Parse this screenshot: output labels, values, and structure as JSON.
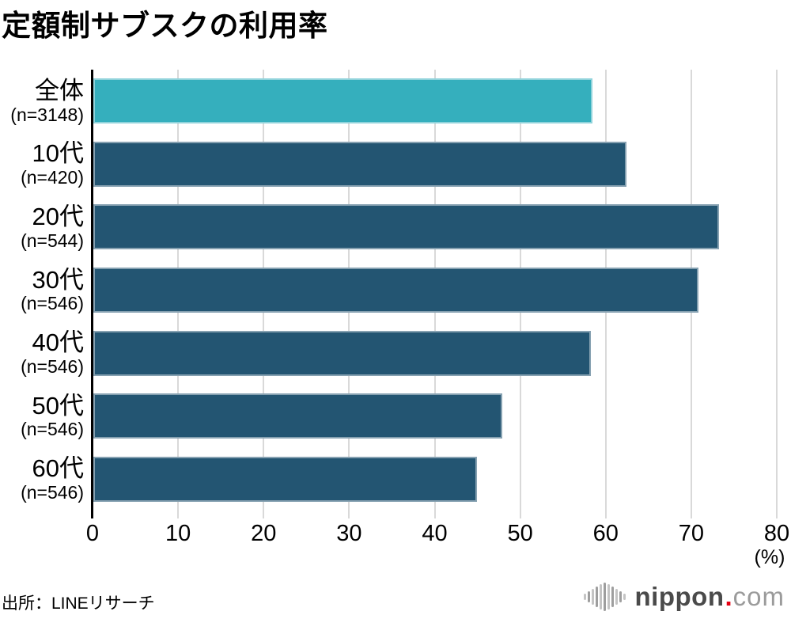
{
  "title": "定額制サブスクの利用率",
  "source_text": "出所：LINEリサーチ",
  "logo": {
    "brand": "nippon",
    "dot": ".",
    "tld": "com",
    "icon": "waveform-icon"
  },
  "chart_data": {
    "type": "bar",
    "orientation": "horizontal",
    "title": "定額制サブスクの利用率",
    "categories": [
      "全体",
      "10代",
      "20代",
      "30代",
      "40代",
      "50代",
      "60代"
    ],
    "sample_sizes": [
      "(n=3148)",
      "(n=420)",
      "(n=544)",
      "(n=546)",
      "(n=546)",
      "(n=546)",
      "(n=546)"
    ],
    "values": [
      58.4,
      62.4,
      73.2,
      70.8,
      58.2,
      47.9,
      44.9
    ],
    "unit_label": "(%)",
    "xlim": [
      0,
      80
    ],
    "x_ticks": [
      0,
      10,
      20,
      30,
      40,
      50,
      60,
      70,
      80
    ],
    "grid": true,
    "legend": "none",
    "bar_colors": [
      "#35AFBD",
      "#235572",
      "#235572",
      "#235572",
      "#235572",
      "#235572",
      "#235572"
    ],
    "highlight_color": "#35AFBD",
    "base_color": "#235572",
    "gridline_color": "#d9d9d9"
  }
}
